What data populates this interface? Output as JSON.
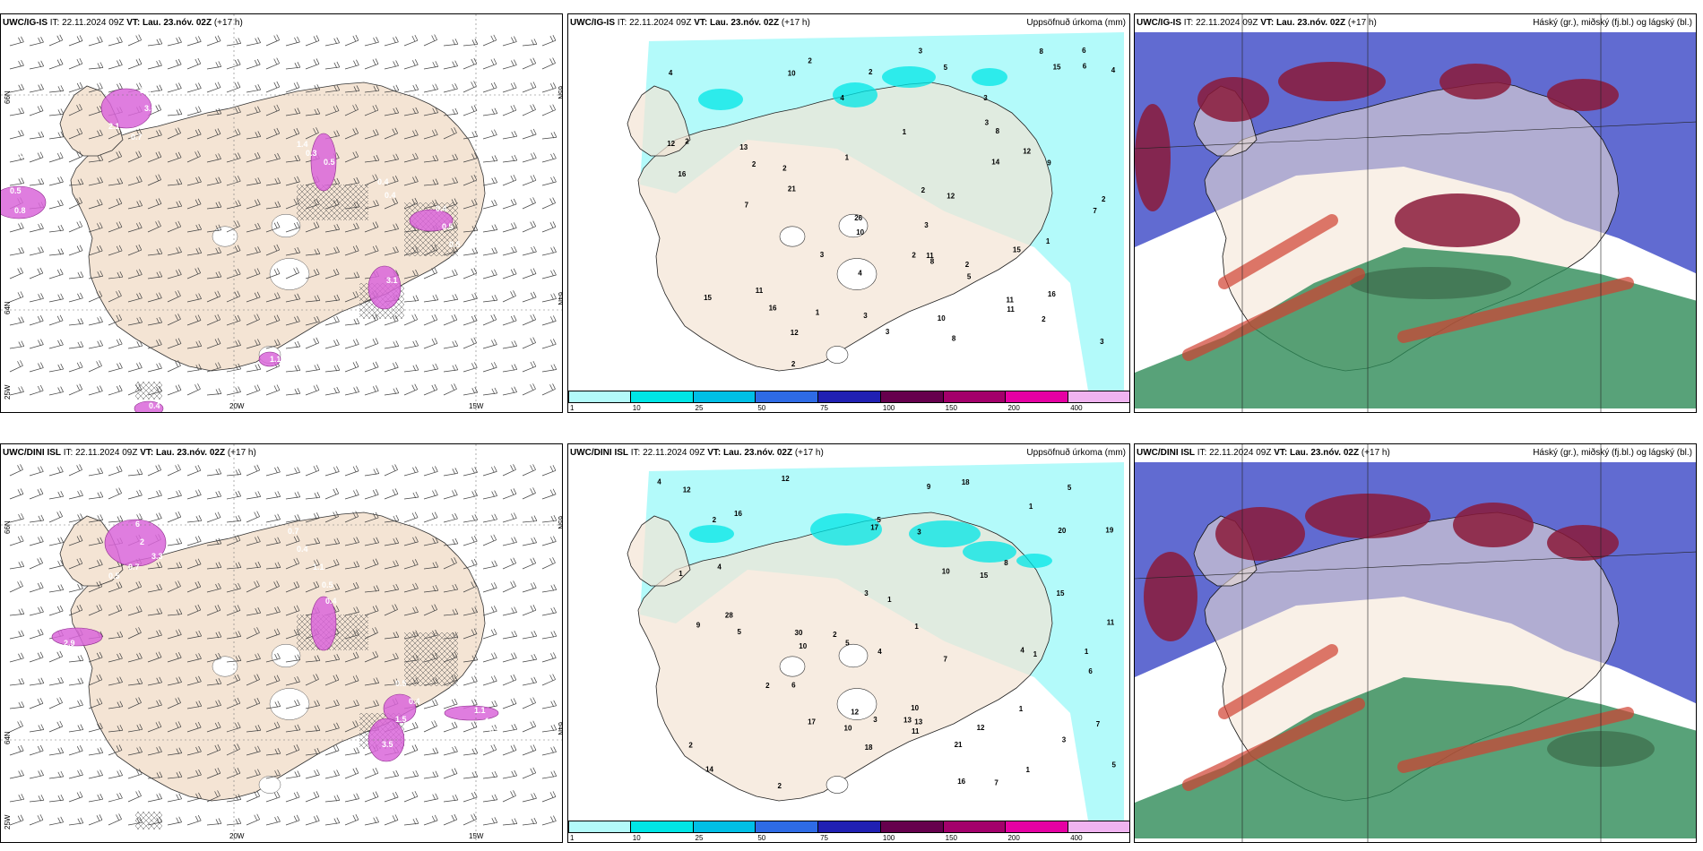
{
  "figure": {
    "rows": [
      {
        "model": "UWC/IG-IS",
        "panels": [
          {
            "model": "UWC/IG-IS",
            "it": "IT: 22.11.2024 09Z",
            "vt_label": "VT:",
            "vt": "Lau. 23.nóv. 02Z",
            "lead": "(+17 h)",
            "right_title": "",
            "lon_labels": [
              "20W",
              "15W"
            ],
            "lat_labels": [
              "66N",
              "64N",
              "25W"
            ],
            "lat_labels_right": [
              "65N",
              "64N"
            ],
            "values": [
              "3.6",
              "3.5",
              "2.1",
              "0.7",
              "0.3",
              "0.5",
              "0.8",
              "0.5",
              "0.7",
              "1.4",
              "0.3",
              "0.5",
              "0.4",
              "0.4",
              "0.4",
              "0.5",
              "0.5",
              "3.1",
              "1.1",
              "0.4"
            ]
          },
          {
            "model": "UWC/IG-IS",
            "it": "IT: 22.11.2024 09Z",
            "vt_label": "VT:",
            "vt": "Lau. 23.nóv. 02Z",
            "lead": "(+17 h)",
            "right_title": "Uppsöfnuð úrkoma (mm)",
            "values": [
              "8",
              "10",
              "11",
              "13",
              "12",
              "10",
              "7",
              "21",
              "10",
              "16",
              "15",
              "12",
              "26",
              "11",
              "14",
              "8",
              "16",
              "15",
              "15",
              "9",
              "11",
              "8",
              "12",
              "11",
              "12",
              "8",
              "7",
              "2",
              "3",
              "4",
              "5",
              "6",
              "3",
              "1",
              "2",
              "3",
              "3",
              "2",
              "2",
              "2",
              "2",
              "2",
              "4",
              "16",
              "5",
              "1",
              "2",
              "4",
              "3",
              "6",
              "3",
              "1",
              "2",
              "3",
              "4",
              "3",
              "2",
              "1",
              "2"
            ]
          },
          {
            "model": "UWC/IG-IS",
            "it": "IT: 22.11.2024 09Z",
            "vt_label": "VT:",
            "vt": "Lau. 23.nóv. 02Z",
            "lead": "(+17 h)",
            "right_title": "Háský (gr.), miðský (fj.bl.) og lágský (bl.)"
          }
        ]
      },
      {
        "model": "UWC/DINI ISL",
        "panels": [
          {
            "model": "UWC/DINI ISL",
            "it": "IT: 22.11.2024 09Z",
            "vt_label": "VT:",
            "vt": "Lau. 23.nóv. 02Z",
            "lead": "(+17 h)",
            "right_title": "",
            "lon_labels": [
              "20W",
              "15W"
            ],
            "lat_labels": [
              "66N",
              "64N",
              "25W"
            ],
            "lat_labels_right": [
              "65N",
              "64N"
            ],
            "values": [
              "6",
              "2",
              "3.3",
              "0.7",
              "0.5",
              "2.9",
              "0.7",
              "0.4",
              "1.1",
              "0.5",
              "0.4",
              "0.5",
              "0.4",
              "1.5",
              "3.5",
              "0.6",
              "1.1",
              "1.4",
              "0.5"
            ]
          },
          {
            "model": "UWC/DINI ISL",
            "it": "IT: 22.11.2024 09Z",
            "vt_label": "VT:",
            "vt": "Lau. 23.nóv. 02Z",
            "lead": "(+17 h)",
            "right_title": "Uppsöfnuð úrkoma (mm)",
            "values": [
              "3",
              "7",
              "10",
              "9",
              "12",
              "15",
              "7",
              "5",
              "16",
              "21",
              "28",
              "30",
              "18",
              "13",
              "12",
              "14",
              "17",
              "20",
              "17",
              "12",
              "19",
              "16",
              "6",
              "12",
              "10",
              "15",
              "5",
              "6",
              "10",
              "11",
              "13",
              "11",
              "10",
              "7",
              "5",
              "4",
              "3",
              "2",
              "1",
              "2",
              "3",
              "9",
              "8",
              "5",
              "18",
              "5",
              "4",
              "3",
              "2",
              "2",
              "4",
              "1",
              "1",
              "1",
              "2",
              "1",
              "1",
              "1",
              "1",
              "4"
            ]
          },
          {
            "model": "UWC/DINI ISL",
            "it": "IT: 22.11.2024 09Z",
            "vt_label": "VT:",
            "vt": "Lau. 23.nóv. 02Z",
            "lead": "(+17 h)",
            "right_title": "Háský (gr.), miðský (fj.bl.) og lágský (bl.)"
          }
        ]
      }
    ],
    "colorbar": {
      "ticks": [
        "1",
        "10",
        "25",
        "50",
        "75",
        "100",
        "150",
        "200",
        "400"
      ],
      "colors": [
        "#b3fafa",
        "#00e6e6",
        "#00bfe6",
        "#2e6be6",
        "#2020b3",
        "#66004d",
        "#a3006b",
        "#e600a3",
        "#f0b3f0"
      ]
    },
    "colors": {
      "land": "#f4e4d4",
      "sea": "#ffffff",
      "precip_light": "#b3fafa",
      "precip_mod": "#00e6e6",
      "pink": "#d966d9",
      "high_cloud": "#2e8b57",
      "mid_cloud": "#8b1a3a",
      "low_cloud": "#3a46c6"
    }
  }
}
